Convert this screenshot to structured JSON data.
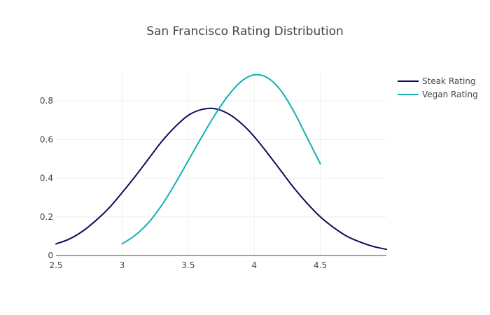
{
  "chart_data": {
    "type": "line",
    "title": "San Francisco Rating Distribution",
    "xlabel": "",
    "ylabel": "",
    "xlim": [
      2.5,
      5.0
    ],
    "ylim": [
      0,
      0.96
    ],
    "x_ticks": [
      2.5,
      3,
      3.5,
      4,
      4.5
    ],
    "x_tick_labels": [
      "2.5",
      "3",
      "3.5",
      "4",
      "4.5"
    ],
    "y_ticks": [
      0,
      0.2,
      0.4,
      0.6,
      0.8
    ],
    "y_tick_labels": [
      "0",
      "0.2",
      "0.4",
      "0.6",
      "0.8"
    ],
    "grid": true,
    "legend_position": "top-right",
    "series": [
      {
        "name": "Steak Rating",
        "color": "#0b0b5e",
        "x": [
          2.5,
          2.6,
          2.7,
          2.8,
          2.9,
          3.0,
          3.1,
          3.2,
          3.3,
          3.4,
          3.5,
          3.6,
          3.7,
          3.8,
          3.9,
          4.0,
          4.1,
          4.2,
          4.3,
          4.4,
          4.5,
          4.6,
          4.7,
          4.8,
          4.9,
          5.0
        ],
        "y": [
          0.06,
          0.085,
          0.125,
          0.18,
          0.245,
          0.325,
          0.41,
          0.5,
          0.59,
          0.665,
          0.725,
          0.755,
          0.76,
          0.735,
          0.685,
          0.615,
          0.53,
          0.44,
          0.35,
          0.27,
          0.2,
          0.145,
          0.1,
          0.07,
          0.047,
          0.032
        ]
      },
      {
        "name": "Vegan Rating",
        "color": "#17aeb0",
        "x": [
          3.0,
          3.1,
          3.2,
          3.3,
          3.4,
          3.5,
          3.6,
          3.7,
          3.8,
          3.9,
          4.0,
          4.1,
          4.2,
          4.3,
          4.4,
          4.5
        ],
        "y": [
          0.06,
          0.105,
          0.17,
          0.26,
          0.37,
          0.49,
          0.61,
          0.725,
          0.825,
          0.9,
          0.935,
          0.92,
          0.855,
          0.745,
          0.61,
          0.475
        ]
      }
    ]
  }
}
